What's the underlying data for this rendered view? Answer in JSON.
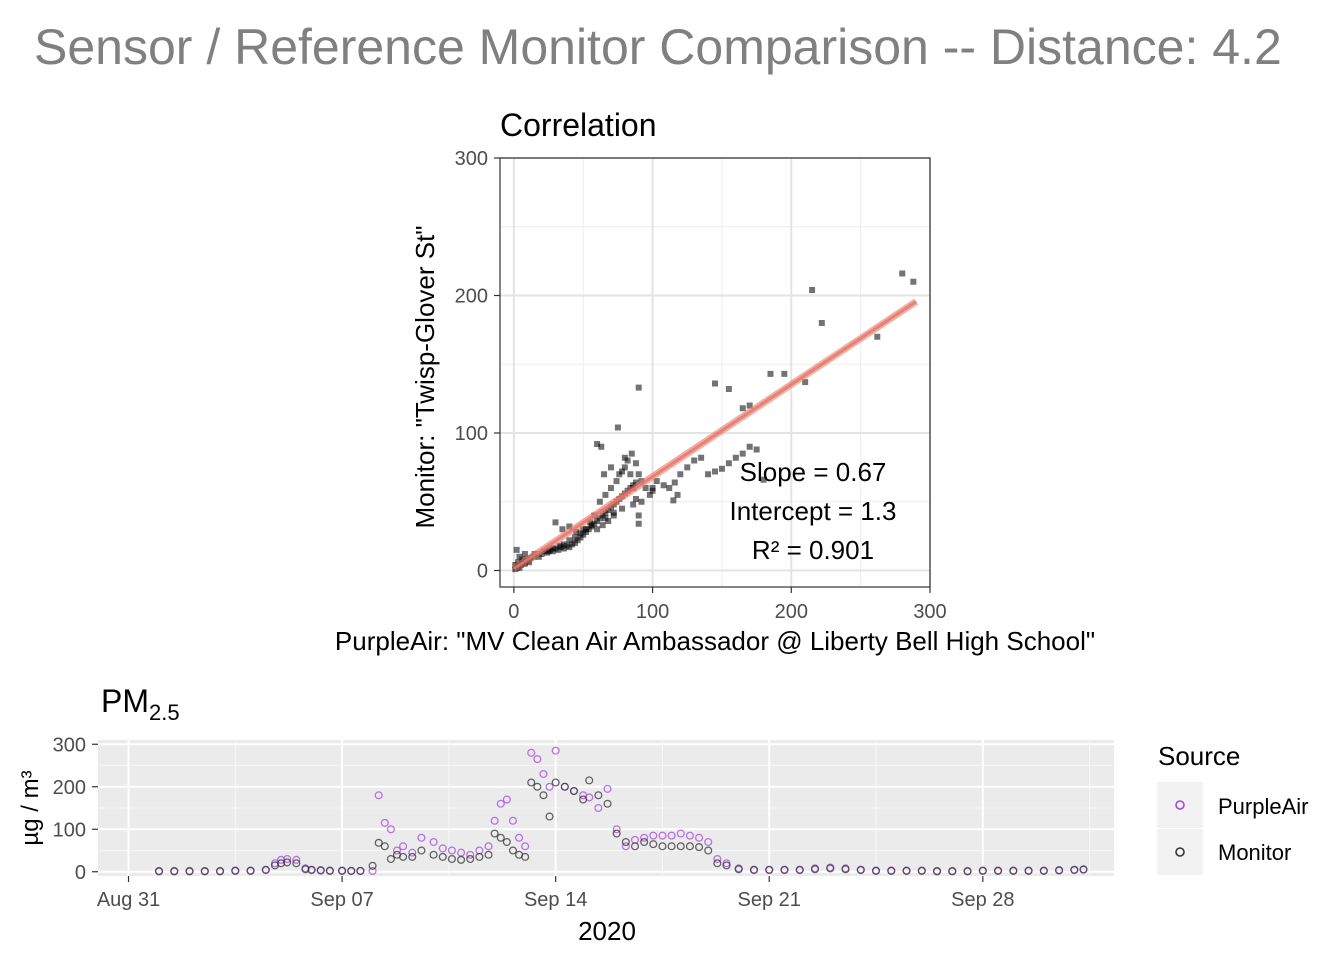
{
  "title": "Sensor / Reference Monitor Comparison -- Distance: 4.2",
  "chart_data": [
    {
      "type": "scatter",
      "title": "Correlation",
      "xlabel": "PurpleAir: \"MV Clean Air Ambassador @ Liberty Bell High School\"",
      "ylabel": "Monitor: \"Twisp-Glover St\"",
      "xlim": [
        -10,
        300
      ],
      "ylim": [
        -12,
        300
      ],
      "x_ticks": [
        0,
        100,
        200,
        300
      ],
      "y_ticks": [
        0,
        100,
        200,
        300
      ],
      "grid": true,
      "fit": {
        "slope": 0.67,
        "intercept": 1.3,
        "r2": 0.901,
        "x_range": [
          0,
          290
        ],
        "color": "#e8786b"
      },
      "annotations": [
        "Slope = 0.67",
        "Intercept = 1.3",
        "R² = 0.901"
      ],
      "points": [
        [
          1,
          1
        ],
        [
          2,
          2
        ],
        [
          3,
          3
        ],
        [
          4,
          2
        ],
        [
          5,
          4
        ],
        [
          6,
          5
        ],
        [
          7,
          6
        ],
        [
          8,
          5
        ],
        [
          9,
          7
        ],
        [
          10,
          8
        ],
        [
          12,
          9
        ],
        [
          14,
          10
        ],
        [
          15,
          12
        ],
        [
          2,
          15
        ],
        [
          4,
          10
        ],
        [
          6,
          8
        ],
        [
          8,
          12
        ],
        [
          11,
          6
        ],
        [
          3,
          6
        ],
        [
          1,
          4
        ],
        [
          18,
          10
        ],
        [
          20,
          12
        ],
        [
          22,
          14
        ],
        [
          24,
          13
        ],
        [
          26,
          15
        ],
        [
          28,
          14
        ],
        [
          30,
          16
        ],
        [
          32,
          15
        ],
        [
          34,
          17
        ],
        [
          36,
          16
        ],
        [
          38,
          18
        ],
        [
          40,
          17
        ],
        [
          42,
          19
        ],
        [
          44,
          20
        ],
        [
          46,
          22
        ],
        [
          48,
          24
        ],
        [
          50,
          26
        ],
        [
          52,
          28
        ],
        [
          54,
          30
        ],
        [
          56,
          32
        ],
        [
          58,
          34
        ],
        [
          60,
          36
        ],
        [
          62,
          38
        ],
        [
          64,
          40
        ],
        [
          66,
          42
        ],
        [
          68,
          44
        ],
        [
          70,
          46
        ],
        [
          72,
          48
        ],
        [
          74,
          50
        ],
        [
          76,
          52
        ],
        [
          78,
          54
        ],
        [
          80,
          56
        ],
        [
          82,
          58
        ],
        [
          84,
          60
        ],
        [
          86,
          62
        ],
        [
          88,
          64
        ],
        [
          60,
          30
        ],
        [
          64,
          33
        ],
        [
          68,
          36
        ],
        [
          72,
          40
        ],
        [
          30,
          35
        ],
        [
          35,
          30
        ],
        [
          40,
          32
        ],
        [
          45,
          28
        ],
        [
          50,
          30
        ],
        [
          55,
          35
        ],
        [
          58,
          40
        ],
        [
          62,
          50
        ],
        [
          66,
          55
        ],
        [
          70,
          60
        ],
        [
          74,
          65
        ],
        [
          76,
          70
        ],
        [
          78,
          72
        ],
        [
          80,
          75
        ],
        [
          82,
          80
        ],
        [
          85,
          85
        ],
        [
          88,
          78
        ],
        [
          90,
          70
        ],
        [
          92,
          65
        ],
        [
          95,
          60
        ],
        [
          60,
          92
        ],
        [
          63,
          90
        ],
        [
          75,
          104
        ],
        [
          90,
          133
        ],
        [
          65,
          70
        ],
        [
          70,
          75
        ],
        [
          80,
          82
        ],
        [
          84,
          70
        ],
        [
          86,
          60
        ],
        [
          88,
          52
        ],
        [
          90,
          40
        ],
        [
          90,
          34
        ],
        [
          100,
          58
        ],
        [
          108,
          62
        ],
        [
          112,
          60
        ],
        [
          116,
          64
        ],
        [
          118,
          55
        ],
        [
          115,
          51
        ],
        [
          120,
          70
        ],
        [
          125,
          75
        ],
        [
          130,
          80
        ],
        [
          135,
          82
        ],
        [
          140,
          70
        ],
        [
          145,
          72
        ],
        [
          150,
          74
        ],
        [
          155,
          78
        ],
        [
          160,
          82
        ],
        [
          165,
          85
        ],
        [
          170,
          90
        ],
        [
          175,
          88
        ],
        [
          180,
          66
        ],
        [
          145,
          136
        ],
        [
          155,
          132
        ],
        [
          165,
          118
        ],
        [
          170,
          120
        ],
        [
          185,
          143
        ],
        [
          195,
          143
        ],
        [
          210,
          137
        ],
        [
          215,
          204
        ],
        [
          222,
          180
        ],
        [
          262,
          170
        ],
        [
          280,
          216
        ],
        [
          288,
          210
        ],
        [
          100,
          60
        ],
        [
          103,
          65
        ],
        [
          98,
          55
        ],
        [
          92,
          50
        ],
        [
          86,
          48
        ],
        [
          78,
          45
        ],
        [
          72,
          42
        ],
        [
          66,
          38
        ],
        [
          56,
          33
        ],
        [
          52,
          30
        ],
        [
          48,
          27
        ],
        [
          44,
          24
        ],
        [
          40,
          22
        ],
        [
          36,
          19
        ],
        [
          33,
          18
        ],
        [
          28,
          16
        ],
        [
          25,
          14
        ]
      ]
    },
    {
      "type": "scatter",
      "title": "PM",
      "title_sub": "2.5",
      "xlabel": "2020",
      "ylabel": "µg / m³",
      "ylim": [
        -10,
        310
      ],
      "y_ticks": [
        0,
        100,
        200,
        300
      ],
      "x_ticks": [
        "Aug 31",
        "Sep 07",
        "Sep 14",
        "Sep 21",
        "Sep 28"
      ],
      "x_tick_days": [
        0,
        7,
        14,
        21,
        28
      ],
      "xlim_days": [
        -1,
        32.3
      ],
      "legend": {
        "title": "Source",
        "position": "right",
        "entries": [
          {
            "name": "PurpleAir",
            "color": "#a347e6"
          },
          {
            "name": "Monitor",
            "color": "#333333"
          }
        ]
      },
      "series": [
        {
          "name": "PurpleAir",
          "color": "#a347e6",
          "x": [
            1,
            1.5,
            2,
            2.5,
            3,
            3.5,
            4,
            4.5,
            4.8,
            5,
            5.2,
            5.5,
            5.8,
            6,
            6.3,
            6.6,
            7,
            7.3,
            7.6,
            8,
            8.2,
            8.4,
            8.6,
            8.8,
            9,
            9.3,
            9.6,
            10,
            10.3,
            10.6,
            10.9,
            11.2,
            11.5,
            11.8,
            12,
            12.2,
            12.4,
            12.6,
            12.8,
            13,
            13.2,
            13.4,
            13.6,
            13.8,
            14,
            14.3,
            14.6,
            14.9,
            15.1,
            15.4,
            15.7,
            16,
            16.3,
            16.6,
            16.9,
            17.2,
            17.5,
            17.8,
            18.1,
            18.4,
            18.7,
            19,
            19.3,
            19.6,
            20,
            20.5,
            21,
            21.5,
            22,
            22.5,
            23,
            23.5,
            24,
            24.5,
            25,
            25.5,
            26,
            26.5,
            27,
            27.5,
            28,
            28.5,
            29,
            29.5,
            30,
            30.5,
            31,
            31.3
          ],
          "y": [
            2,
            2,
            2,
            2,
            2,
            3,
            3,
            5,
            20,
            28,
            30,
            28,
            8,
            5,
            4,
            3,
            3,
            2,
            2,
            2,
            180,
            115,
            100,
            50,
            60,
            45,
            80,
            70,
            55,
            50,
            45,
            40,
            50,
            60,
            120,
            160,
            170,
            120,
            80,
            60,
            280,
            265,
            230,
            200,
            285,
            200,
            190,
            180,
            175,
            150,
            195,
            100,
            60,
            75,
            80,
            85,
            85,
            85,
            90,
            85,
            80,
            70,
            30,
            20,
            8,
            5,
            5,
            5,
            5,
            8,
            10,
            8,
            5,
            3,
            3,
            3,
            3,
            2,
            2,
            2,
            3,
            3,
            3,
            3,
            3,
            4,
            5,
            6
          ]
        },
        {
          "name": "Monitor",
          "color": "#333333",
          "x": [
            1,
            1.5,
            2,
            2.5,
            3,
            3.5,
            4,
            4.5,
            4.8,
            5,
            5.2,
            5.5,
            5.8,
            6,
            6.3,
            6.6,
            7,
            7.3,
            7.6,
            8,
            8.2,
            8.4,
            8.6,
            8.8,
            9,
            9.3,
            9.6,
            10,
            10.3,
            10.6,
            10.9,
            11.2,
            11.5,
            11.8,
            12,
            12.2,
            12.4,
            12.6,
            12.8,
            13,
            13.2,
            13.4,
            13.6,
            13.8,
            14,
            14.3,
            14.6,
            14.9,
            15.1,
            15.4,
            15.7,
            16,
            16.3,
            16.6,
            16.9,
            17.2,
            17.5,
            17.8,
            18.1,
            18.4,
            18.7,
            19,
            19.3,
            19.6,
            20,
            20.5,
            21,
            21.5,
            22,
            22.5,
            23,
            23.5,
            24,
            24.5,
            25,
            25.5,
            26,
            26.5,
            27,
            27.5,
            28,
            28.5,
            29,
            29.5,
            30,
            30.5,
            31,
            31.3
          ],
          "y": [
            1,
            1,
            1,
            1,
            1,
            2,
            2,
            4,
            15,
            20,
            22,
            20,
            6,
            4,
            3,
            2,
            2,
            2,
            2,
            14,
            68,
            60,
            30,
            40,
            35,
            35,
            50,
            40,
            35,
            30,
            28,
            30,
            35,
            40,
            90,
            80,
            70,
            50,
            40,
            35,
            210,
            200,
            180,
            130,
            210,
            200,
            190,
            170,
            215,
            180,
            160,
            90,
            70,
            60,
            70,
            65,
            60,
            60,
            60,
            60,
            58,
            50,
            20,
            15,
            6,
            4,
            4,
            4,
            4,
            6,
            8,
            6,
            4,
            2,
            2,
            2,
            2,
            1,
            1,
            1,
            2,
            2,
            2,
            2,
            2,
            3,
            4,
            5
          ]
        }
      ]
    }
  ]
}
